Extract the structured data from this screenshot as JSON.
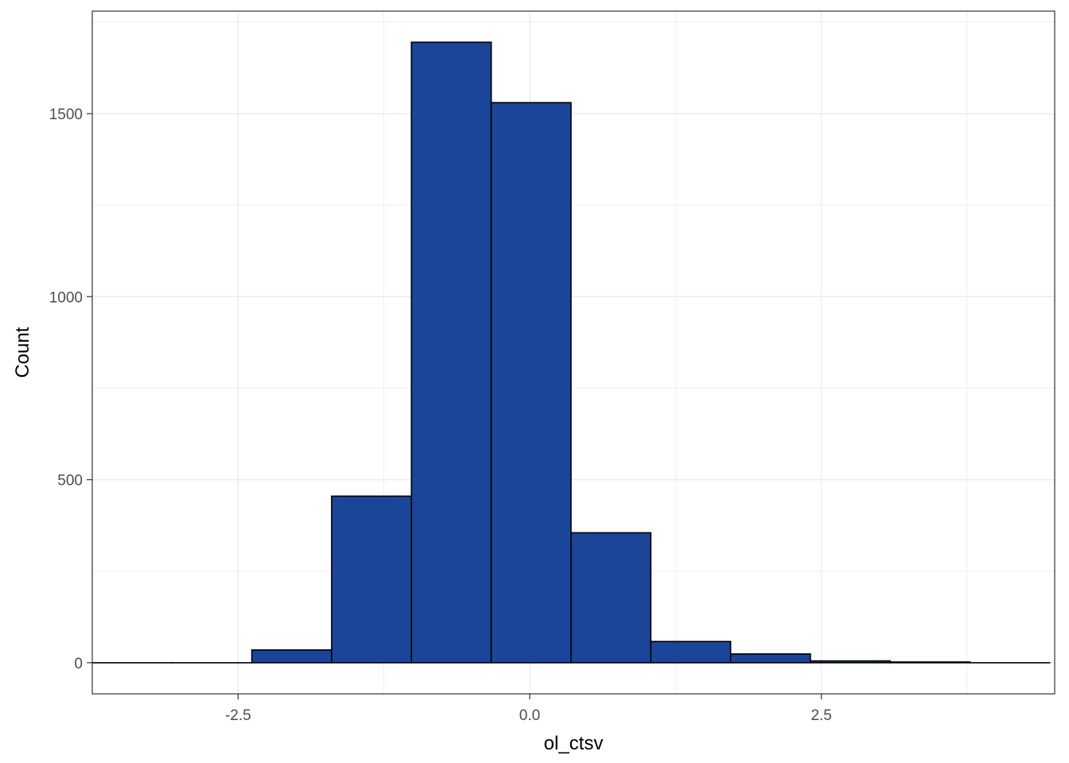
{
  "chart_data": {
    "type": "bar",
    "subtype": "histogram",
    "xlabel": "ol_ctsv",
    "ylabel": "Count",
    "title": "",
    "xlim": [
      -3.75,
      4.5
    ],
    "ylim": [
      -85,
      1780
    ],
    "x_ticks": [
      -2.5,
      0.0,
      2.5
    ],
    "x_tick_labels": [
      "-2.5",
      "0.0",
      "2.5"
    ],
    "y_ticks": [
      0,
      500,
      1000,
      1500
    ],
    "y_tick_labels": [
      "0",
      "500",
      "1000",
      "1500"
    ],
    "grid": true,
    "legend": "none",
    "bins": [
      {
        "x0": -3.75,
        "x1": -3.066,
        "count": 0
      },
      {
        "x0": -3.066,
        "x1": -2.382,
        "count": 0
      },
      {
        "x0": -2.382,
        "x1": -1.698,
        "count": 35
      },
      {
        "x0": -1.698,
        "x1": -1.014,
        "count": 455
      },
      {
        "x0": -1.014,
        "x1": -0.33,
        "count": 1695
      },
      {
        "x0": -0.33,
        "x1": 0.354,
        "count": 1530
      },
      {
        "x0": 0.354,
        "x1": 1.038,
        "count": 355
      },
      {
        "x0": 1.038,
        "x1": 1.722,
        "count": 58
      },
      {
        "x0": 1.722,
        "x1": 2.406,
        "count": 24
      },
      {
        "x0": 2.406,
        "x1": 3.09,
        "count": 5
      },
      {
        "x0": 3.09,
        "x1": 3.774,
        "count": 2
      },
      {
        "x0": 3.774,
        "x1": 4.458,
        "count": 0
      }
    ],
    "colors": {
      "bar_fill": "#1a4599",
      "bar_stroke": "#000000",
      "grid": "#ebebeb",
      "panel_border": "#333333",
      "tick_label": "#4d4d4d"
    }
  }
}
